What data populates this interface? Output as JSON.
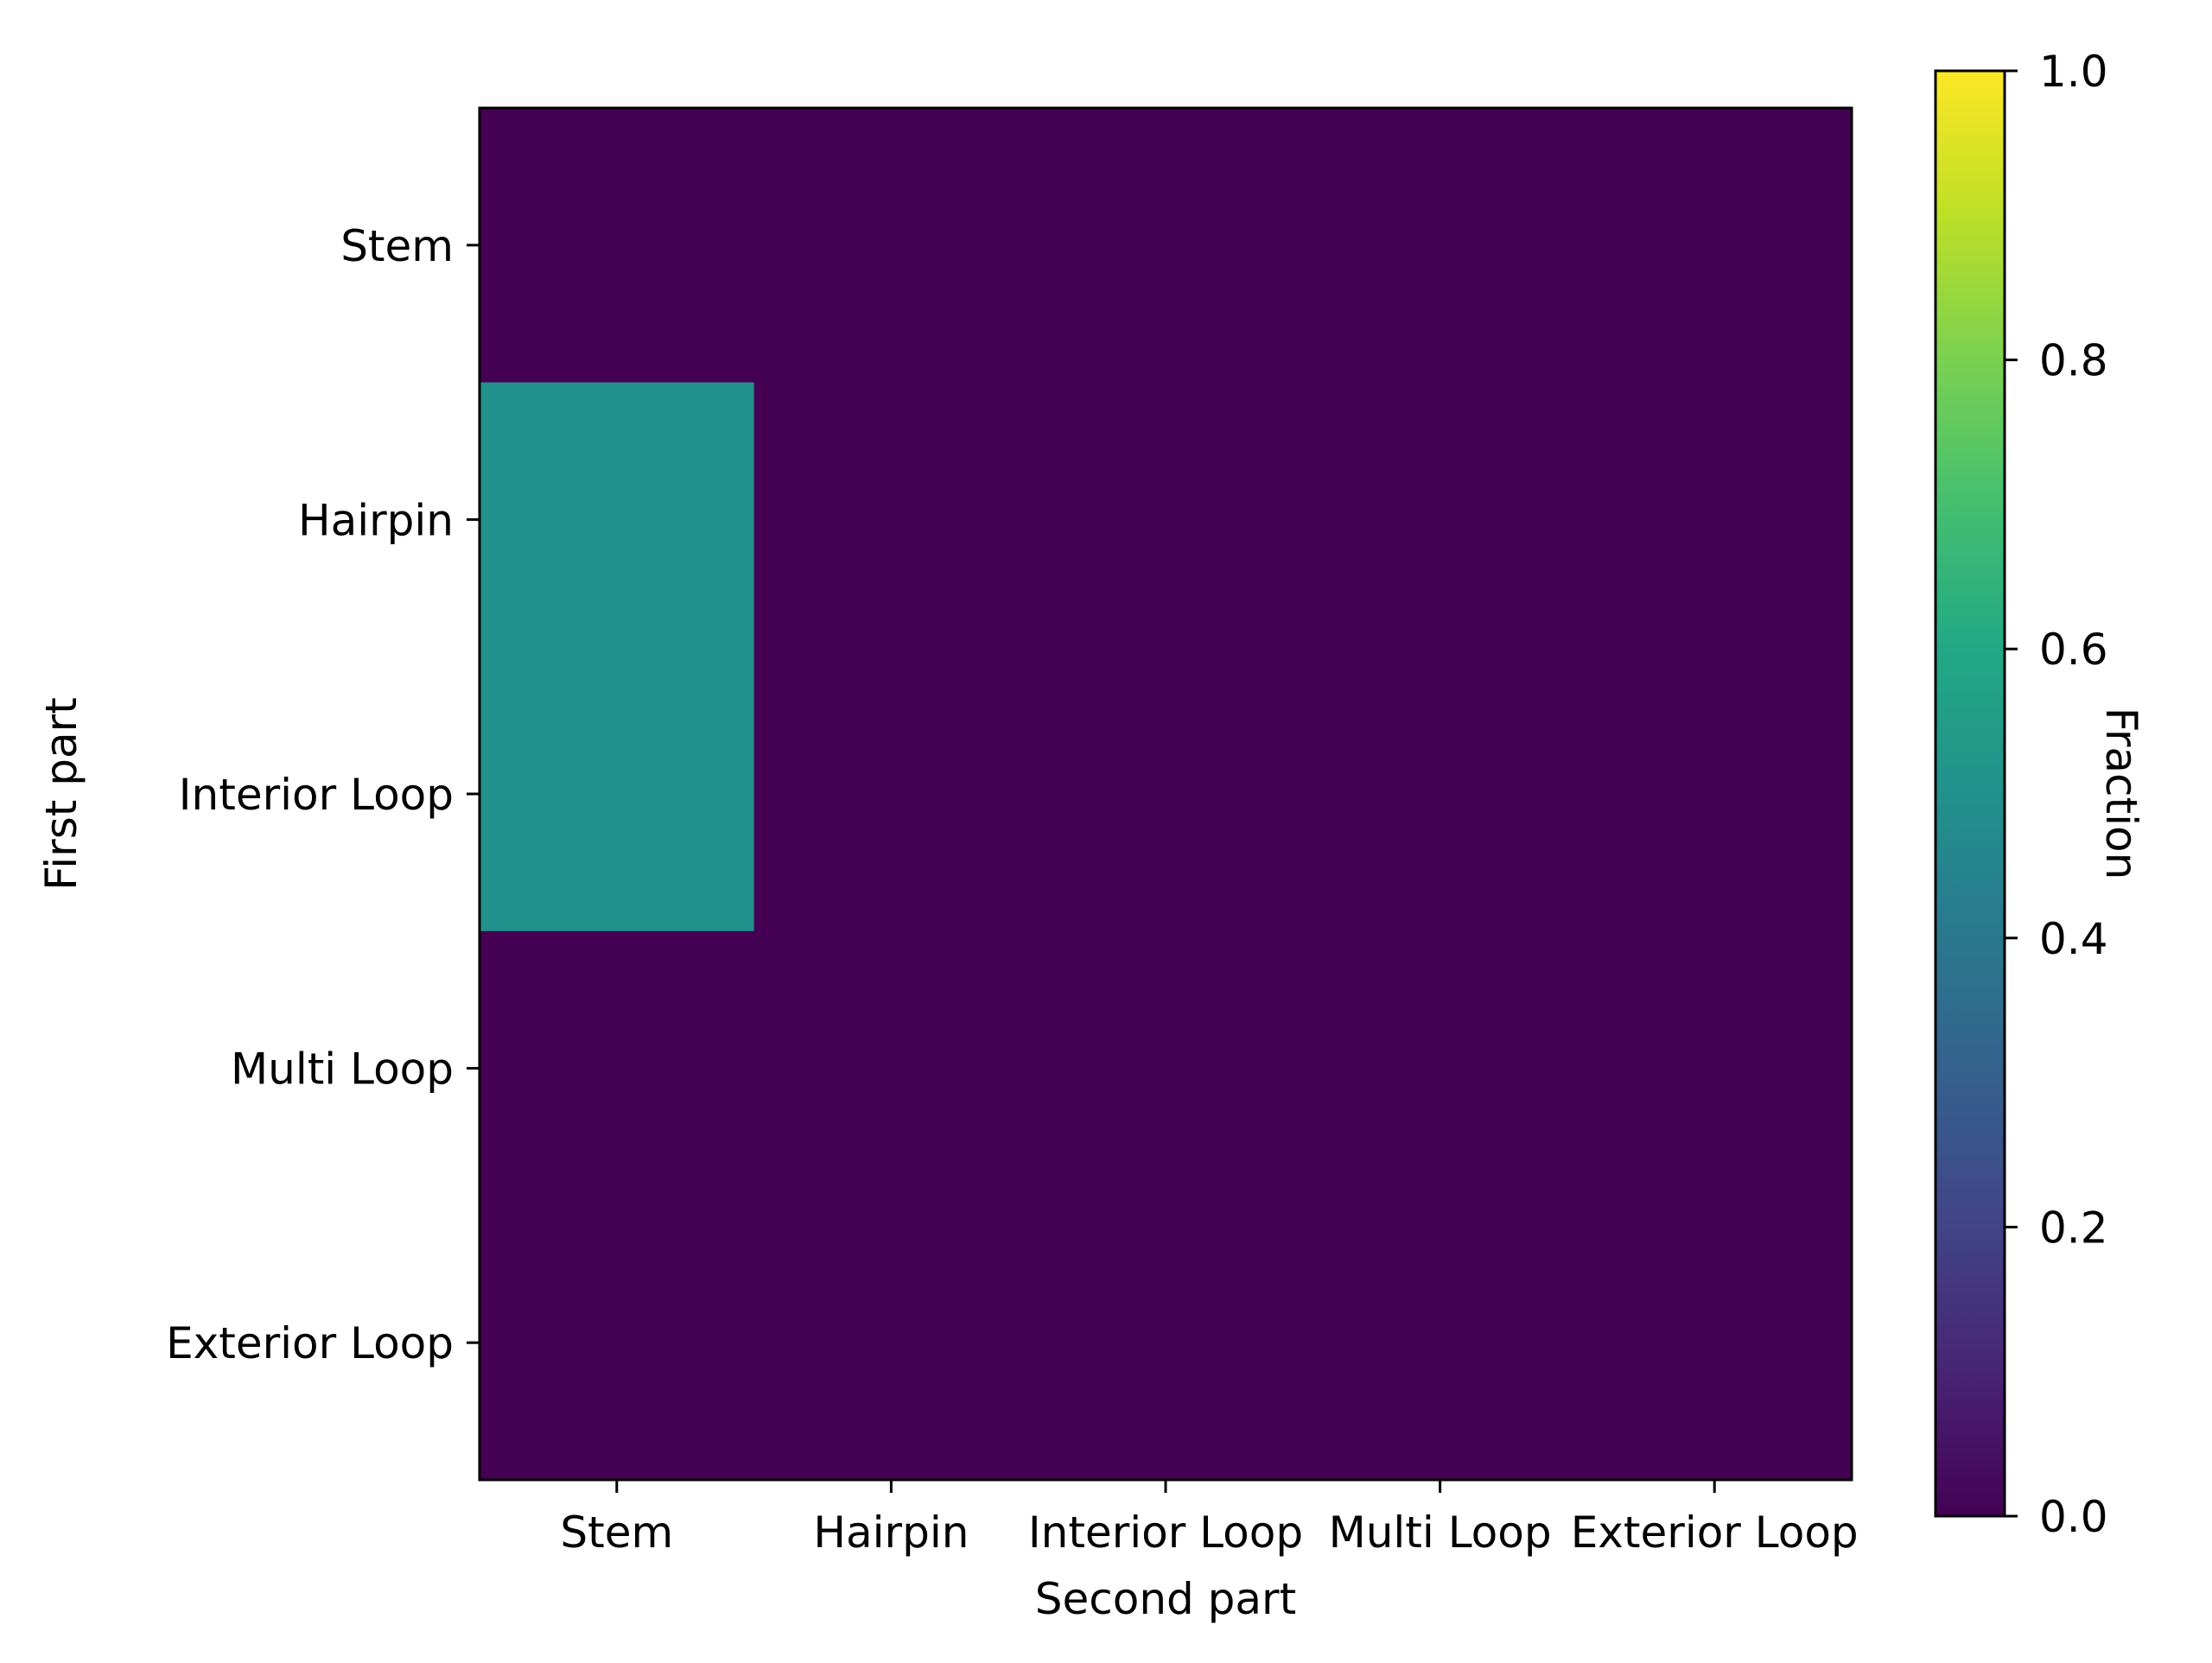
{
  "chart_data": {
    "type": "heatmap",
    "xlabel": "Second part",
    "ylabel": "First part",
    "x_categories": [
      "Stem",
      "Hairpin",
      "Interior Loop",
      "Multi Loop",
      "Exterior Loop"
    ],
    "y_categories": [
      "Stem",
      "Hairpin",
      "Interior Loop",
      "Multi Loop",
      "Exterior Loop"
    ],
    "values": [
      [
        0.0,
        0.0,
        0.0,
        0.0,
        0.0
      ],
      [
        0.5,
        0.0,
        0.0,
        0.0,
        0.0
      ],
      [
        0.5,
        0.0,
        0.0,
        0.0,
        0.0
      ],
      [
        0.0,
        0.0,
        0.0,
        0.0,
        0.0
      ],
      [
        0.0,
        0.0,
        0.0,
        0.0,
        0.0
      ]
    ],
    "colorbar": {
      "label": "Fraction",
      "range": [
        0.0,
        1.0
      ],
      "ticks": [
        "0.0",
        "0.2",
        "0.4",
        "0.6",
        "0.8",
        "1.0"
      ],
      "colormap": "viridis"
    },
    "grid": false
  }
}
